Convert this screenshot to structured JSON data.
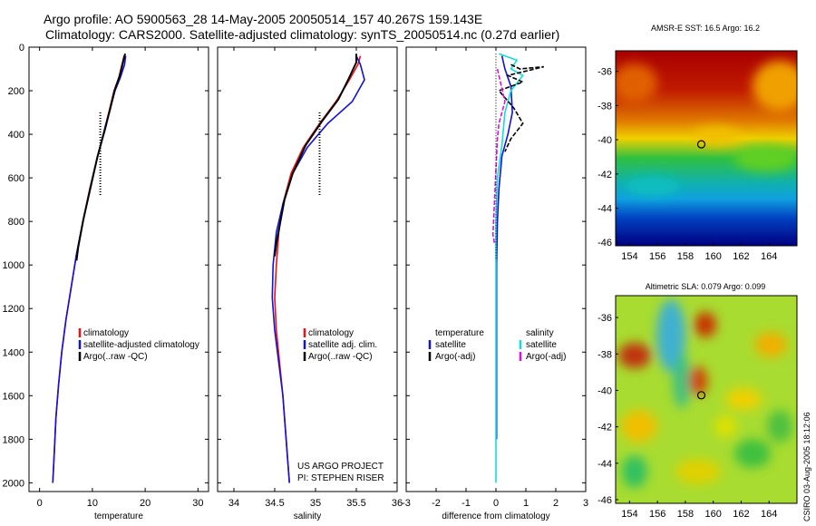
{
  "header": {
    "line1": "Argo profile: AO 5900563_28 14-May-2005 20050514_157 40.267S 159.143E",
    "line2": "Climatology: CARS2000. Satellite-adjusted climatology: synTS_20050514.nc (0.27d earlier)"
  },
  "colors": {
    "climatology": "#ee1111",
    "satellite": "#1111dd",
    "argo": "#000000",
    "salinity_sat": "#11dddd",
    "salinity_argo": "#dd11dd"
  },
  "credit": {
    "project": "US ARGO PROJECT",
    "pi": "PI: STEPHEN RISER"
  },
  "footer": "CSIRO 03-Aug-2005 18:12:06",
  "chart_data": [
    {
      "type": "line",
      "name": "temperature",
      "xlabel": "temperature",
      "xlim": [
        -2,
        32
      ],
      "ylim": [
        0,
        2040
      ],
      "xticks": [
        "0",
        "10",
        "20",
        "30"
      ],
      "yticks": [
        "0",
        "200",
        "400",
        "600",
        "800",
        "1000",
        "1200",
        "1400",
        "1600",
        "1800",
        "2000"
      ],
      "legend": [
        "climatology",
        "satellite-adjusted climatology",
        "Argo(..raw -QC)"
      ],
      "series": [
        {
          "name": "climatology",
          "color": "#ee1111",
          "points": [
            [
              16,
              40
            ],
            [
              15.6,
              80
            ],
            [
              15,
              140
            ],
            [
              14.1,
              200
            ],
            [
              13.3,
              280
            ],
            [
              12.3,
              380
            ],
            [
              11,
              500
            ],
            [
              9.5,
              650
            ],
            [
              8.2,
              800
            ],
            [
              7,
              950
            ],
            [
              6,
              1100
            ],
            [
              5,
              1250
            ],
            [
              4.2,
              1400
            ],
            [
              3.6,
              1550
            ],
            [
              3.1,
              1700
            ],
            [
              2.8,
              1850
            ],
            [
              2.5,
              2000
            ]
          ]
        },
        {
          "name": "satellite",
          "color": "#1111dd",
          "points": [
            [
              16.3,
              40
            ],
            [
              16.1,
              80
            ],
            [
              15.3,
              140
            ],
            [
              14.3,
              200
            ],
            [
              13.4,
              280
            ],
            [
              12.4,
              380
            ],
            [
              11,
              500
            ],
            [
              9.6,
              650
            ],
            [
              8.2,
              800
            ],
            [
              7,
              950
            ],
            [
              6,
              1100
            ],
            [
              5,
              1250
            ],
            [
              4.2,
              1400
            ],
            [
              3.6,
              1550
            ],
            [
              3.1,
              1700
            ],
            [
              2.8,
              1850
            ],
            [
              2.5,
              2000
            ]
          ]
        },
        {
          "name": "argo",
          "color": "#000000",
          "points": [
            [
              16.2,
              30
            ],
            [
              15.8,
              70
            ],
            [
              15.2,
              130
            ],
            [
              14.2,
              200
            ],
            [
              13.3,
              290
            ],
            [
              12.2,
              390
            ],
            [
              10.9,
              510
            ],
            [
              9.5,
              660
            ],
            [
              8.3,
              790
            ],
            [
              7.3,
              920
            ],
            [
              7,
              980
            ]
          ]
        }
      ]
    },
    {
      "type": "line",
      "name": "salinity",
      "xlabel": "salinity",
      "xlim": [
        33.8,
        36
      ],
      "ylim": [
        0,
        2040
      ],
      "xticks": [
        "34",
        "34.5",
        "35",
        "35.5",
        "36"
      ],
      "legend": [
        "climatology",
        "satellite adj. clim.",
        "Argo(..raw -QC)"
      ],
      "series": [
        {
          "name": "climatology",
          "color": "#ee1111",
          "points": [
            [
              35.55,
              40
            ],
            [
              35.52,
              80
            ],
            [
              35.4,
              160
            ],
            [
              35.25,
              250
            ],
            [
              35.05,
              350
            ],
            [
              34.85,
              460
            ],
            [
              34.7,
              580
            ],
            [
              34.6,
              720
            ],
            [
              34.55,
              850
            ],
            [
              34.52,
              1000
            ],
            [
              34.5,
              1150
            ],
            [
              34.52,
              1300
            ],
            [
              34.56,
              1450
            ],
            [
              34.6,
              1600
            ],
            [
              34.63,
              1750
            ],
            [
              34.66,
              1900
            ],
            [
              34.68,
              2000
            ]
          ]
        },
        {
          "name": "satellite",
          "color": "#1111dd",
          "points": [
            [
              35.5,
              40
            ],
            [
              35.55,
              80
            ],
            [
              35.6,
              150
            ],
            [
              35.45,
              250
            ],
            [
              35.15,
              350
            ],
            [
              34.9,
              460
            ],
            [
              34.72,
              580
            ],
            [
              34.6,
              720
            ],
            [
              34.52,
              850
            ],
            [
              34.48,
              1000
            ],
            [
              34.47,
              1150
            ],
            [
              34.5,
              1300
            ],
            [
              34.55,
              1450
            ],
            [
              34.6,
              1600
            ],
            [
              34.63,
              1750
            ],
            [
              34.66,
              1900
            ],
            [
              34.68,
              2000
            ]
          ]
        },
        {
          "name": "argo",
          "color": "#000000",
          "points": [
            [
              35.5,
              30
            ],
            [
              35.5,
              70
            ],
            [
              35.4,
              150
            ],
            [
              35.28,
              240
            ],
            [
              35.08,
              340
            ],
            [
              34.88,
              450
            ],
            [
              34.72,
              580
            ],
            [
              34.62,
              700
            ],
            [
              34.56,
              820
            ],
            [
              34.52,
              900
            ],
            [
              34.5,
              960
            ]
          ]
        }
      ]
    },
    {
      "type": "line",
      "name": "difference",
      "xlabel": "difference from climatology",
      "xlim": [
        -3,
        3
      ],
      "ylim": [
        0,
        2040
      ],
      "xticks": [
        "-3",
        "-2",
        "-1",
        "0",
        "1",
        "2",
        "3"
      ],
      "legend_left": [
        "temperature",
        "satellite",
        "Argo(-adj)"
      ],
      "legend_right": [
        "salinity",
        "satellite",
        "Argo(-adj)"
      ],
      "series": [
        {
          "name": "temp-satellite",
          "color": "#1111dd",
          "points": [
            [
              0.2,
              40
            ],
            [
              0.3,
              100
            ],
            [
              0.5,
              180
            ],
            [
              0.55,
              300
            ],
            [
              0.4,
              400
            ],
            [
              0.2,
              500
            ],
            [
              0.1,
              650
            ],
            [
              0.05,
              800
            ],
            [
              0.02,
              1000
            ],
            [
              0.02,
              1200
            ],
            [
              0.02,
              1600
            ],
            [
              0.02,
              1800
            ]
          ]
        },
        {
          "name": "sal-satellite",
          "color": "#11dddd",
          "points": [
            [
              0.1,
              30
            ],
            [
              0.7,
              60
            ],
            [
              0.5,
              100
            ],
            [
              0.9,
              130
            ],
            [
              0.5,
              200
            ],
            [
              0.3,
              300
            ],
            [
              0.2,
              450
            ],
            [
              0.05,
              600
            ],
            [
              0,
              800
            ],
            [
              0,
              1000
            ],
            [
              0,
              1200
            ],
            [
              0,
              1600
            ],
            [
              0,
              2000
            ]
          ]
        },
        {
          "name": "temp-argo",
          "color": "#000000",
          "points": [
            [
              0.5,
              80
            ],
            [
              0.8,
              100
            ],
            [
              1.6,
              90
            ],
            [
              0.4,
              130
            ],
            [
              0.9,
              160
            ],
            [
              0.1,
              200
            ],
            [
              0.6,
              280
            ],
            [
              0.9,
              350
            ],
            [
              0.5,
              420
            ],
            [
              0.3,
              480
            ]
          ]
        },
        {
          "name": "sal-argo",
          "color": "#dd11dd",
          "points": [
            [
              0.05,
              100
            ],
            [
              0.3,
              250
            ],
            [
              0.1,
              350
            ],
            [
              0.05,
              420
            ],
            [
              -0.1,
              860
            ],
            [
              -0.05,
              900
            ]
          ]
        }
      ]
    },
    {
      "type": "heatmap",
      "name": "sst-map",
      "title": "AMSR-E SST: 16.5 Argo: 16.2",
      "xticks": [
        "154",
        "156",
        "158",
        "160",
        "162",
        "164"
      ],
      "yticks": [
        "-36",
        "-38",
        "-40",
        "-42",
        "-44",
        "-46"
      ],
      "xlim": [
        153,
        166
      ],
      "ylim": [
        -46.2,
        -34.8
      ],
      "argo_location": [
        159.143,
        -40.267
      ]
    },
    {
      "type": "heatmap",
      "name": "sla-map",
      "title": "Altimetric SLA: 0.079 Argo: 0.099",
      "xticks": [
        "154",
        "156",
        "158",
        "160",
        "162",
        "164"
      ],
      "yticks": [
        "-36",
        "-38",
        "-40",
        "-42",
        "-44",
        "-46"
      ],
      "xlim": [
        153,
        166
      ],
      "ylim": [
        -46.2,
        -34.8
      ],
      "argo_location": [
        159.143,
        -40.267
      ]
    }
  ]
}
